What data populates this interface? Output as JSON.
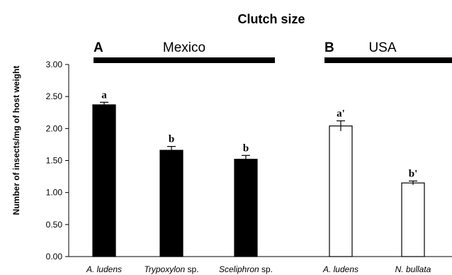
{
  "chart_data": {
    "type": "bar",
    "title": "Clutch size",
    "ylabel": "Number of insects/mg of host weight",
    "xlabel": "",
    "ylim": [
      0,
      3.0
    ],
    "yticks": [
      "0.00",
      "0.50",
      "1.00",
      "1.50",
      "2.00",
      "2.50",
      "3.00"
    ],
    "panels": [
      {
        "letter": "A",
        "name": "Mexico"
      },
      {
        "letter": "B",
        "name": "USA"
      }
    ],
    "bars": [
      {
        "category": "A. ludens",
        "category_suffix": "",
        "value": 2.37,
        "error": 0.04,
        "label": "a",
        "panel": 0,
        "fill": "#000000"
      },
      {
        "category": "Trypoxylon",
        "category_suffix": " sp.",
        "value": 1.66,
        "error": 0.06,
        "label": "b",
        "panel": 0,
        "fill": "#000000"
      },
      {
        "category": "Sceliphron",
        "category_suffix": " sp.",
        "value": 1.52,
        "error": 0.06,
        "label": "b",
        "panel": 0,
        "fill": "#000000"
      },
      {
        "category": "A. ludens",
        "category_suffix": "",
        "value": 2.04,
        "error": 0.08,
        "label": "a'",
        "panel": 1,
        "fill": "#ffffff"
      },
      {
        "category": "N. bullata",
        "category_suffix": "",
        "value": 1.15,
        "error": 0.03,
        "label": "b'",
        "panel": 1,
        "fill": "#ffffff"
      }
    ],
    "grid": false,
    "legend": "none"
  }
}
